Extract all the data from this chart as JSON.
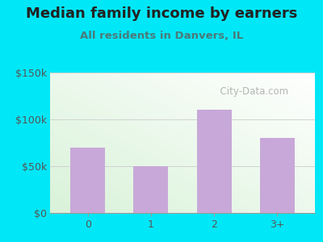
{
  "title": "Median family income by earners",
  "subtitle": "All residents in Danvers, IL",
  "categories": [
    "0",
    "1",
    "2",
    "3+"
  ],
  "values": [
    70000,
    50000,
    110000,
    80000
  ],
  "bar_color": "#c8a8d8",
  "ylim": [
    0,
    150000
  ],
  "yticks": [
    0,
    50000,
    100000,
    150000
  ],
  "ytick_labels": [
    "$0",
    "$50k",
    "$100k",
    "$150k"
  ],
  "bg_outer": "#00e8f8",
  "title_color": "#222222",
  "subtitle_color": "#4a7a7a",
  "watermark_text": "  City-Data.com",
  "watermark_color": "#aaaaaa",
  "title_fontsize": 13,
  "subtitle_fontsize": 9.5,
  "tick_color": "#555555",
  "grid_color": "#cccccc"
}
